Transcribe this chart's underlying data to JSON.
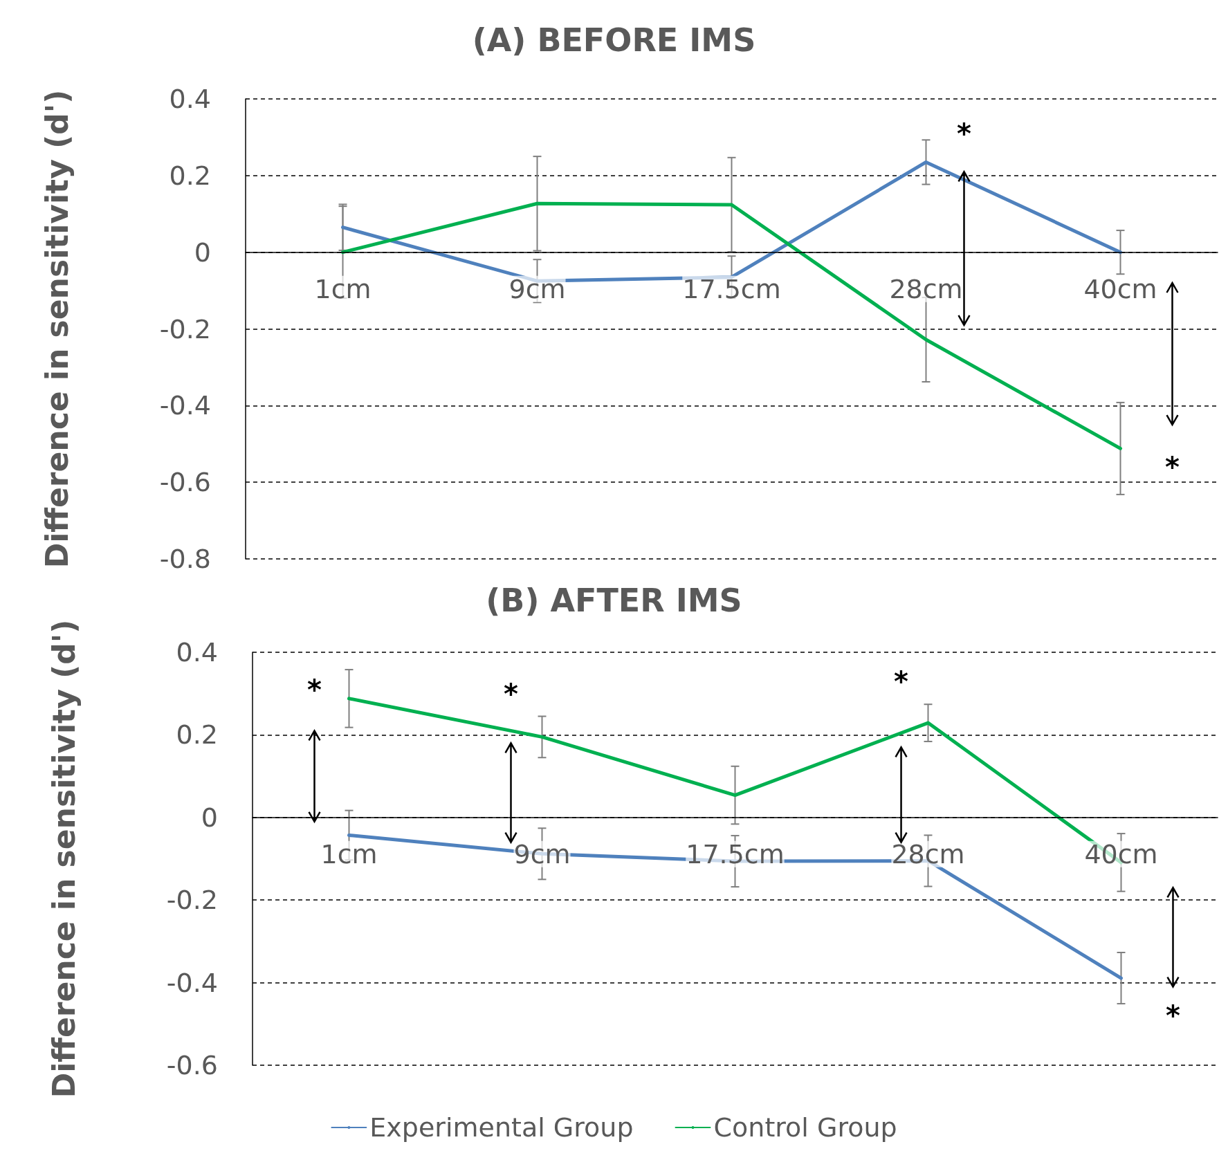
{
  "chart_data": [
    {
      "type": "line",
      "title": "(A) BEFORE IMS",
      "ylabel": "Difference in sensitivity (d')",
      "categories": [
        "1cm",
        "9cm",
        "17.5cm",
        "28cm",
        "40cm"
      ],
      "series": [
        {
          "color": "#4f81bd",
          "values": [
            0.065,
            -0.075,
            -0.065,
            0.235,
            0
          ],
          "errors": [
            0.06,
            0.056,
            0.055,
            0.058,
            0.057
          ]
        },
        {
          "color": "#00b050",
          "values": [
            0,
            0.127,
            0.124,
            -0.228,
            -0.512
          ],
          "errors": [
            0.12,
            0.123,
            0.123,
            0.11,
            0.12
          ]
        }
      ],
      "ylim": [
        -0.8,
        0.4
      ],
      "yticks": [
        -0.8,
        -0.6,
        -0.4,
        -0.2,
        0,
        0.2,
        0.4
      ],
      "grid": "y",
      "legend": false,
      "marker": "none",
      "line_style": "solid",
      "annotations": [
        "*",
        "*"
      ]
    },
    {
      "type": "line",
      "title": "(B) AFTER IMS",
      "ylabel": "Difference in sensitivity (d')",
      "categories": [
        "1cm",
        "9cm",
        "17.5cm",
        "28cm",
        "40cm"
      ],
      "series": [
        {
          "name": "Experimental Group",
          "color": "#4f81bd",
          "values": [
            -0.043,
            -0.088,
            -0.106,
            -0.105,
            -0.389
          ],
          "errors": [
            0.06,
            0.062,
            0.062,
            0.062,
            0.062
          ]
        },
        {
          "name": "Control Group",
          "color": "#00b050",
          "values": [
            0.288,
            0.195,
            0.054,
            0.229,
            -0.109
          ],
          "errors": [
            0.07,
            0.05,
            0.07,
            0.045,
            0.07
          ]
        }
      ],
      "ylim": [
        -0.6,
        0.4
      ],
      "yticks": [
        -0.6,
        -0.4,
        -0.2,
        0,
        0.2,
        0.4
      ],
      "grid": "y",
      "legend": "bottom",
      "marker": "none",
      "line_style": "solid",
      "annotations": [
        "*",
        "*",
        "*",
        "*"
      ]
    }
  ]
}
